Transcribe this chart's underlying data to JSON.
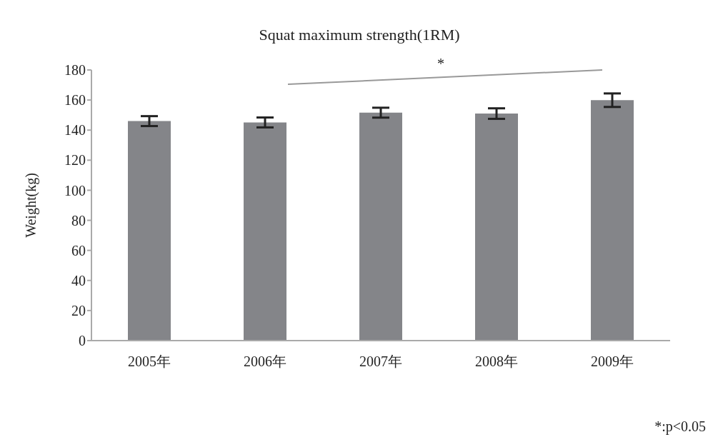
{
  "chart_data": {
    "type": "bar",
    "title": "Squat maximum strength(1RM)",
    "ylabel": "Weight(kg)",
    "categories": [
      "2005年",
      "2006年",
      "2007年",
      "2008年",
      "2009年"
    ],
    "values": [
      146,
      145.1,
      151.6,
      151,
      159.9
    ],
    "errors": [
      3.3,
      3.3,
      3.3,
      3.5,
      4.5
    ],
    "color": "#848589",
    "ylim": [
      0,
      180
    ],
    "yticks": [
      0,
      20,
      40,
      60,
      80,
      100,
      120,
      140,
      160,
      180
    ],
    "grid": false,
    "legend": false,
    "annotations": [
      "*",
      "*:p<0.05"
    ]
  }
}
